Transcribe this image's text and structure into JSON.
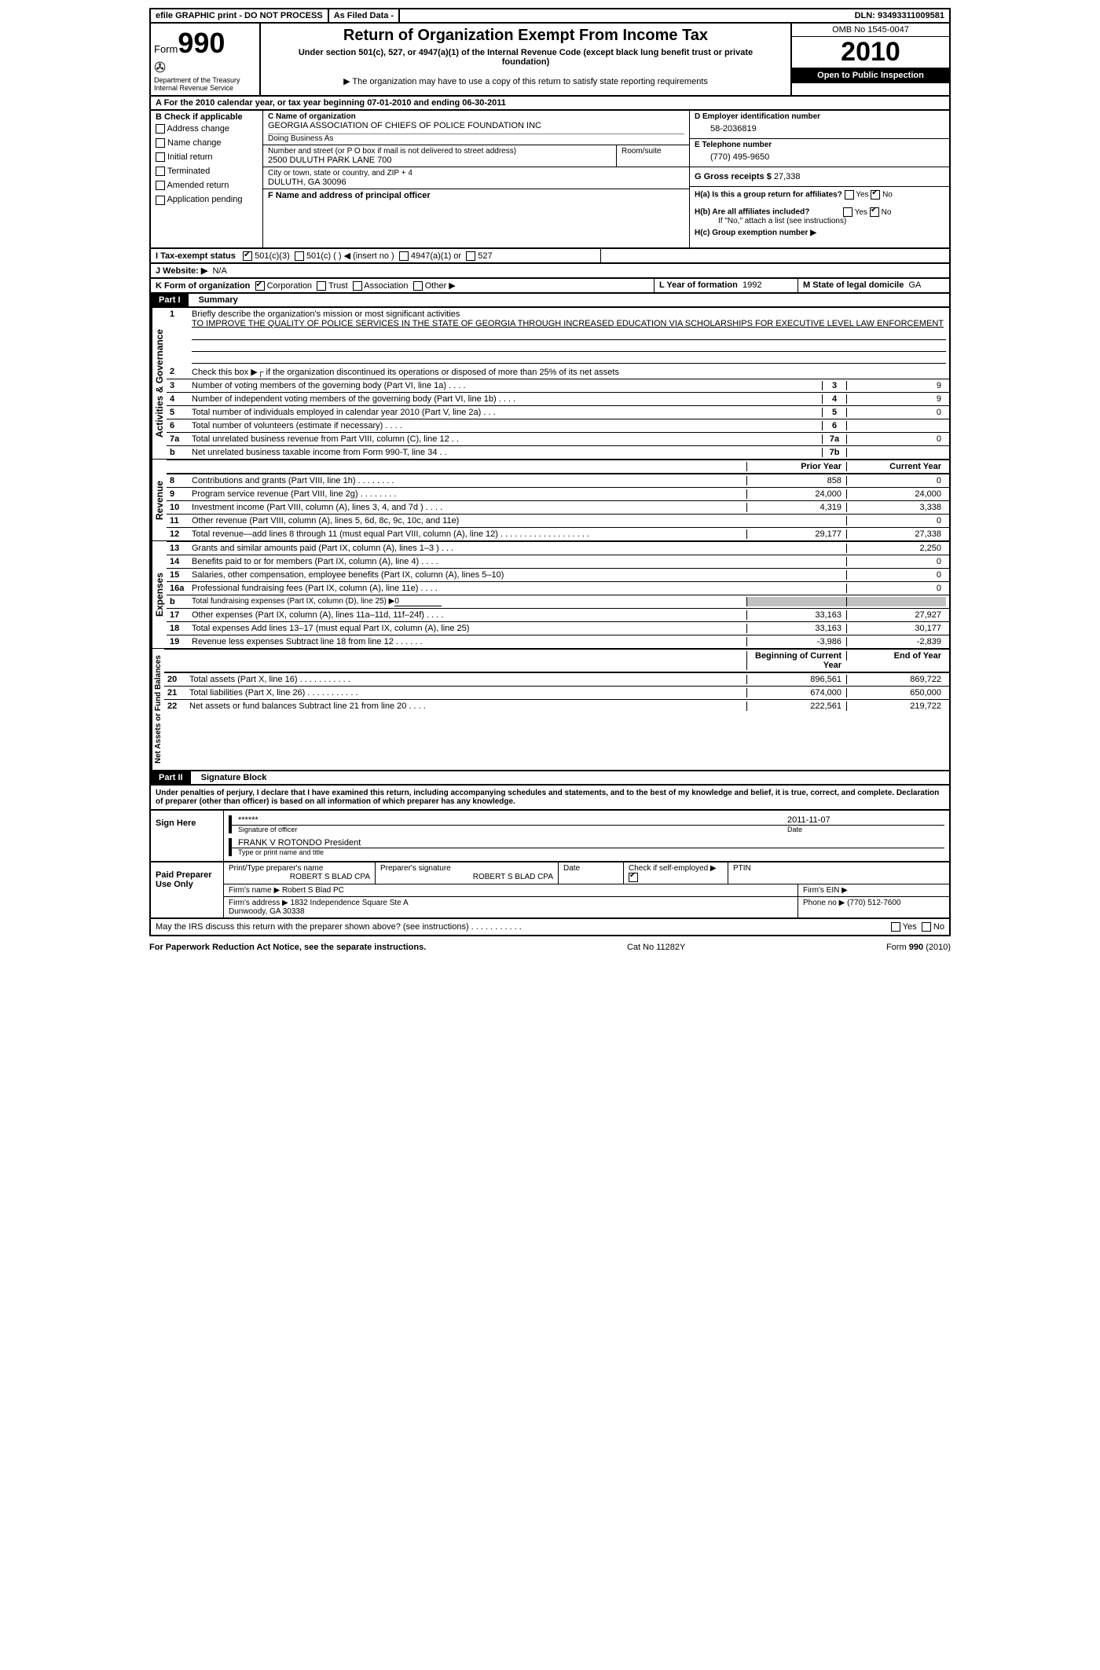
{
  "topbar": {
    "efile": "efile GRAPHIC print - DO NOT PROCESS",
    "asfiled": "As Filed Data -",
    "dln_label": "DLN:",
    "dln": "93493311009581"
  },
  "header": {
    "form_label": "Form",
    "form_no": "990",
    "dept": "Department of the Treasury\nInternal Revenue Service",
    "title": "Return of Organization Exempt From Income Tax",
    "sub1": "Under section 501(c), 527, or 4947(a)(1) of the Internal Revenue Code (except black lung benefit trust or private foundation)",
    "sub2": "▶ The organization may have to use a copy of this return to satisfy state reporting requirements",
    "omb": "OMB No 1545-0047",
    "year": "2010",
    "open": "Open to Public Inspection"
  },
  "a_line": "A  For the 2010 calendar year, or tax year beginning 07-01-2010    and ending 06-30-2011",
  "b": {
    "label": "B  Check if applicable",
    "items": [
      "Address change",
      "Name change",
      "Initial return",
      "Terminated",
      "Amended return",
      "Application pending"
    ]
  },
  "c": {
    "name_label": "C Name of organization",
    "name": "GEORGIA ASSOCIATION OF CHIEFS OF POLICE FOUNDATION INC",
    "dba_label": "Doing Business As",
    "addr_label": "Number and street (or P O  box if mail is not delivered to street address)",
    "addr": "2500 DULUTH PARK LANE 700",
    "room_label": "Room/suite",
    "city_label": "City or town, state or country, and ZIP + 4",
    "city": "DULUTH, GA  30096",
    "f_label": "F   Name and address of principal officer"
  },
  "d": {
    "label": "D Employer identification number",
    "val": "58-2036819"
  },
  "e": {
    "label": "E Telephone number",
    "val": "(770) 495-9650"
  },
  "g": {
    "label": "G Gross receipts $",
    "val": "27,338"
  },
  "h": {
    "a": "H(a)  Is this a group return for affiliates?",
    "b": "H(b)  Are all affiliates included?",
    "b2": "If \"No,\" attach a list  (see instructions)",
    "c": "H(c)   Group exemption number ▶"
  },
  "i": {
    "label": "I   Tax-exempt status",
    "opts": [
      "501(c)(3)",
      "501(c) (   ) ◀ (insert no )",
      "4947(a)(1) or",
      "527"
    ]
  },
  "j": {
    "label": "J   Website: ▶",
    "val": "N/A"
  },
  "k": {
    "label": "K Form of organization",
    "opts": [
      "Corporation",
      "Trust",
      "Association",
      "Other ▶"
    ]
  },
  "l": {
    "label": "L Year of formation",
    "val": "1992"
  },
  "m": {
    "label": "M State of legal domicile",
    "val": "GA"
  },
  "part1": {
    "label": "Part I",
    "title": "Summary"
  },
  "gov": {
    "label": "Activities & Governance",
    "l1": "Briefly describe the organization's mission or most significant activities",
    "l1v": "TO IMPROVE THE QUALITY OF POLICE SERVICES IN THE STATE OF GEORGIA THROUGH INCREASED EDUCATION VIA SCHOLARSHIPS FOR EXECUTIVE LEVEL LAW ENFORCEMENT",
    "l2": "Check this box ▶┌ if the organization discontinued its operations or disposed of more than 25% of its net assets",
    "rows": [
      {
        "n": "3",
        "t": "Number of voting members of the governing body (Part VI, line 1a)  .   .   .   .",
        "k": "3",
        "v": "9"
      },
      {
        "n": "4",
        "t": "Number of independent voting members of the governing body (Part VI, line 1b)  .   .   .   .",
        "k": "4",
        "v": "9"
      },
      {
        "n": "5",
        "t": "Total number of individuals employed in calendar year 2010 (Part V, line 2a)  .   .   .",
        "k": "5",
        "v": "0"
      },
      {
        "n": "6",
        "t": "Total number of volunteers (estimate if necessary)  .   .   .   .",
        "k": "6",
        "v": ""
      },
      {
        "n": "7a",
        "t": "Total unrelated business revenue from Part VIII, column (C), line 12  .   .",
        "k": "7a",
        "v": "0"
      },
      {
        "n": "b",
        "t": "Net unrelated business taxable income from Form 990-T, line 34  .   .",
        "k": "7b",
        "v": ""
      }
    ]
  },
  "rev": {
    "label": "Revenue",
    "head_prior": "Prior Year",
    "head_curr": "Current Year",
    "rows": [
      {
        "n": "8",
        "t": "Contributions and grants (Part VIII, line 1h)  .   .   .   .   .   .   .   .",
        "p": "858",
        "c": "0"
      },
      {
        "n": "9",
        "t": "Program service revenue (Part VIII, line 2g)  .   .   .   .   .   .   .   .",
        "p": "24,000",
        "c": "24,000"
      },
      {
        "n": "10",
        "t": "Investment income (Part VIII, column (A), lines 3, 4, and 7d )  .   .   .   .",
        "p": "4,319",
        "c": "3,338"
      },
      {
        "n": "11",
        "t": "Other revenue (Part VIII, column (A), lines 5, 6d, 8c, 9c, 10c, and 11e)",
        "p": "",
        "c": "0"
      },
      {
        "n": "12",
        "t": "Total revenue—add lines 8 through 11 (must equal Part VIII, column (A), line 12) .   .   .   .   .   .   .   .   .   .   .   .   .   .   .   .   .   .   .",
        "p": "29,177",
        "c": "27,338"
      }
    ]
  },
  "exp": {
    "label": "Expenses",
    "rows": [
      {
        "n": "13",
        "t": "Grants and similar amounts paid (Part IX, column (A), lines 1–3 )  .   .   .",
        "p": "",
        "c": "2,250"
      },
      {
        "n": "14",
        "t": "Benefits paid to or for members (Part IX, column (A), line 4)  .   .   .   .",
        "p": "",
        "c": "0"
      },
      {
        "n": "15",
        "t": "Salaries, other compensation, employee benefits (Part IX, column (A), lines 5–10)",
        "p": "",
        "c": "0"
      },
      {
        "n": "16a",
        "t": "Professional fundraising fees (Part IX, column (A), line 11e)  .   .   .   .",
        "p": "",
        "c": "0"
      },
      {
        "n": "b",
        "t": "Total fundraising expenses (Part IX, column (D), line 25) ▶",
        "p": "gray",
        "c": "gray",
        "extra": "0"
      },
      {
        "n": "17",
        "t": "Other expenses (Part IX, column (A), lines 11a–11d, 11f–24f)  .   .   .   .",
        "p": "33,163",
        "c": "27,927"
      },
      {
        "n": "18",
        "t": "Total expenses  Add lines 13–17 (must equal Part IX, column (A), line 25)",
        "p": "33,163",
        "c": "30,177"
      },
      {
        "n": "19",
        "t": "Revenue less expenses  Subtract line 18 from line 12  .   .   .   .   .   .",
        "p": "-3,986",
        "c": "-2,839"
      }
    ]
  },
  "net": {
    "label": "Net Assets or Fund Balances",
    "head_beg": "Beginning of Current Year",
    "head_end": "End of Year",
    "rows": [
      {
        "n": "20",
        "t": "Total assets (Part X, line 16)  .   .   .   .   .   .   .   .   .   .   .",
        "p": "896,561",
        "c": "869,722"
      },
      {
        "n": "21",
        "t": "Total liabilities (Part X, line 26)  .   .   .   .   .   .   .   .   .   .   .",
        "p": "674,000",
        "c": "650,000"
      },
      {
        "n": "22",
        "t": "Net assets or fund balances  Subtract line 21 from line 20  .   .   .   .",
        "p": "222,561",
        "c": "219,722"
      }
    ]
  },
  "part2": {
    "label": "Part II",
    "title": "Signature Block"
  },
  "perjury": "Under penalties of perjury, I declare that I have examined this return, including accompanying schedules and statements, and to the best of my knowledge and belief, it is true, correct, and complete. Declaration of preparer (other than officer) is based on all information of which preparer has any knowledge.",
  "sign": {
    "here": "Sign Here",
    "stars": "******",
    "sig_officer": "Signature of officer",
    "date": "2011-11-07",
    "date_label": "Date",
    "name": "FRANK V ROTONDO President",
    "name_label": "Type or print name and title"
  },
  "paid": {
    "label": "Paid Preparer Use Only",
    "pt_label": "Print/Type preparer's name",
    "pt_name": "ROBERT S BLAD CPA",
    "sig_label": "Preparer's signature",
    "sig_name": "ROBERT S BLAD CPA",
    "date_label": "Date",
    "self_label": "Check if self-employed ▶",
    "ptin_label": "PTIN",
    "firm_label": "Firm's name   ▶",
    "firm": "Robert S Blad PC",
    "ein_label": "Firm's EIN   ▶",
    "addr_label": "Firm's address ▶",
    "addr": "1832 Independence Square Ste A\nDunwoody, GA  30338",
    "phone_label": "Phone no  ▶",
    "phone": "(770) 512-7600"
  },
  "discuss": "May the IRS discuss this return with the preparer shown above? (see instructions)  .   .   .   .   .   .   .   .   .   .   .",
  "footer": {
    "left": "For Paperwork Reduction Act Notice, see the separate instructions.",
    "mid": "Cat No 11282Y",
    "right": "Form 990 (2010)"
  }
}
